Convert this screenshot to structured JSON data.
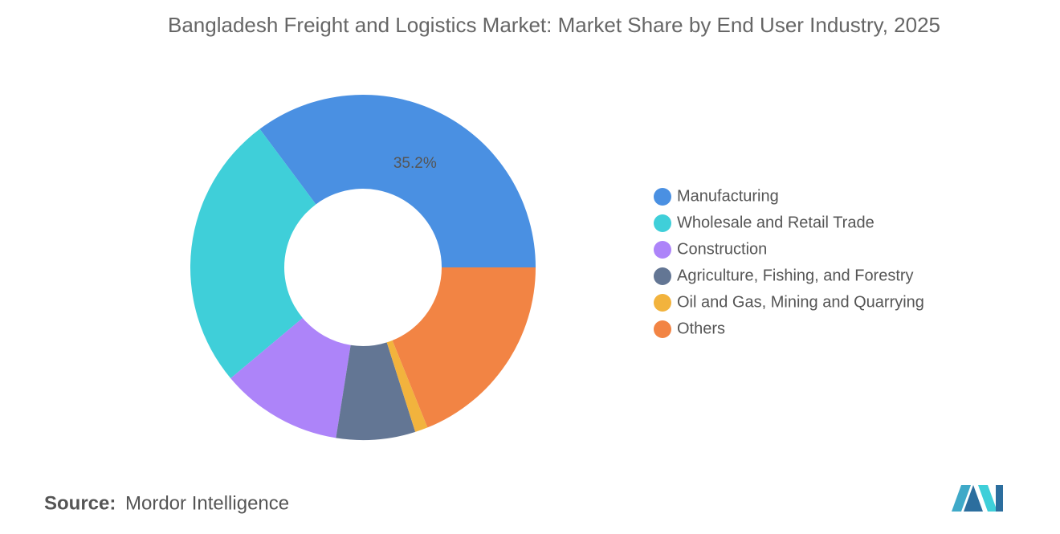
{
  "chart_data": {
    "type": "donut",
    "title": "Bangladesh Freight and Logistics Market: Market Share by End User Industry, 2025",
    "categories": [
      "Manufacturing",
      "Wholesale and Retail Trade",
      "Construction",
      "Agriculture, Fishing, and Forestry",
      "Oil and Gas, Mining and Quarrying",
      "Others"
    ],
    "values": [
      35.2,
      25.9,
      11.4,
      7.4,
      1.2,
      18.9
    ],
    "value_labels": [
      "35.2%",
      null,
      null,
      null,
      null,
      null
    ],
    "colors": [
      "#4a90e2",
      "#3fcfd9",
      "#ad84f9",
      "#637694",
      "#f2b33d",
      "#f28444"
    ],
    "legend": "right"
  },
  "source": {
    "label": "Source:",
    "text": "Mordor Intelligence"
  }
}
